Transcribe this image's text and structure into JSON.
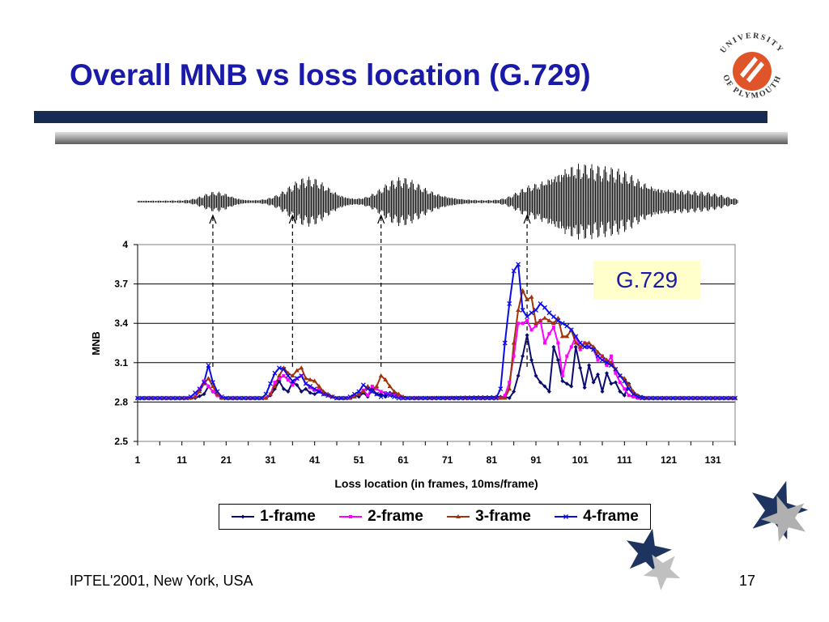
{
  "slide": {
    "title": "Overall MNB vs loss location (G.729)",
    "footer_left": "IPTEL'2001, New York, USA",
    "page_number": "17",
    "callout": "G.729"
  },
  "logo": {
    "text": "UNIVERSITY OF PLYMOUTH",
    "icon": "university-of-plymouth-logo"
  },
  "colors": {
    "title": "#1a1aa8",
    "bar_dark": "#162a52",
    "bar_grey": "#8c8c8c",
    "callout_bg": "#ffffcc",
    "logo_red": "#e0542a"
  },
  "decorations": [
    "waveform-icon",
    "star-icon",
    "arrow-up-icon"
  ],
  "chart_data": {
    "type": "line",
    "xlabel": "Loss location (in frames, 10ms/frame)",
    "ylabel": "MNB",
    "ylim": [
      2.5,
      4
    ],
    "yticks": [
      "2.5",
      "2.8",
      "3.1",
      "3.4",
      "3.7",
      "4"
    ],
    "xticks": [
      "1",
      "11",
      "21",
      "31",
      "41",
      "51",
      "61",
      "71",
      "81",
      "91",
      "101",
      "111",
      "121",
      "131"
    ],
    "xlim": [
      1,
      136
    ],
    "grid": "horizontal",
    "legend_position": "bottom",
    "arrow_frames": [
      18,
      36,
      56,
      89
    ],
    "series": [
      {
        "name": "1-frame",
        "color": "#0a0a70",
        "marker": "diamond",
        "points": [
          [
            1,
            2.83
          ],
          [
            14,
            2.83
          ],
          [
            16,
            2.86
          ],
          [
            17,
            2.92
          ],
          [
            18,
            2.88
          ],
          [
            19,
            2.85
          ],
          [
            20,
            2.83
          ],
          [
            30,
            2.83
          ],
          [
            31,
            2.85
          ],
          [
            32,
            2.9
          ],
          [
            33,
            2.96
          ],
          [
            34,
            2.9
          ],
          [
            35,
            2.88
          ],
          [
            36,
            2.95
          ],
          [
            37,
            2.93
          ],
          [
            38,
            2.88
          ],
          [
            39,
            2.9
          ],
          [
            40,
            2.87
          ],
          [
            41,
            2.86
          ],
          [
            42,
            2.88
          ],
          [
            43,
            2.86
          ],
          [
            44,
            2.85
          ],
          [
            46,
            2.83
          ],
          [
            49,
            2.83
          ],
          [
            50,
            2.85
          ],
          [
            51,
            2.84
          ],
          [
            52,
            2.87
          ],
          [
            53,
            2.84
          ],
          [
            54,
            2.9
          ],
          [
            55,
            2.86
          ],
          [
            56,
            2.86
          ],
          [
            57,
            2.84
          ],
          [
            58,
            2.87
          ],
          [
            59,
            2.86
          ],
          [
            60,
            2.85
          ],
          [
            61,
            2.83
          ],
          [
            84,
            2.84
          ],
          [
            85,
            2.83
          ],
          [
            86,
            2.88
          ],
          [
            87,
            3.0
          ],
          [
            88,
            3.15
          ],
          [
            89,
            3.31
          ],
          [
            90,
            3.12
          ],
          [
            91,
            3.0
          ],
          [
            92,
            2.95
          ],
          [
            93,
            2.92
          ],
          [
            94,
            2.88
          ],
          [
            95,
            3.22
          ],
          [
            96,
            3.12
          ],
          [
            97,
            2.96
          ],
          [
            98,
            2.94
          ],
          [
            99,
            2.92
          ],
          [
            100,
            3.22
          ],
          [
            101,
            3.06
          ],
          [
            102,
            2.91
          ],
          [
            103,
            3.08
          ],
          [
            104,
            2.95
          ],
          [
            105,
            3.01
          ],
          [
            106,
            2.88
          ],
          [
            107,
            3.02
          ],
          [
            108,
            2.94
          ],
          [
            109,
            2.95
          ],
          [
            110,
            2.88
          ],
          [
            111,
            2.85
          ],
          [
            112,
            2.94
          ],
          [
            113,
            2.87
          ],
          [
            114,
            2.85
          ],
          [
            115,
            2.84
          ],
          [
            116,
            2.83
          ],
          [
            136,
            2.83
          ]
        ]
      },
      {
        "name": "2-frame",
        "color": "#ff00ff",
        "marker": "square",
        "points": [
          [
            1,
            2.83
          ],
          [
            13,
            2.83
          ],
          [
            14,
            2.84
          ],
          [
            15,
            2.9
          ],
          [
            16,
            2.96
          ],
          [
            17,
            2.92
          ],
          [
            18,
            2.88
          ],
          [
            19,
            2.85
          ],
          [
            20,
            2.83
          ],
          [
            30,
            2.83
          ],
          [
            31,
            2.86
          ],
          [
            32,
            2.95
          ],
          [
            33,
            2.98
          ],
          [
            34,
            3.0
          ],
          [
            35,
            2.97
          ],
          [
            36,
            2.93
          ],
          [
            37,
            2.98
          ],
          [
            38,
            3.0
          ],
          [
            39,
            2.94
          ],
          [
            40,
            2.91
          ],
          [
            41,
            2.89
          ],
          [
            42,
            2.9
          ],
          [
            43,
            2.87
          ],
          [
            44,
            2.85
          ],
          [
            46,
            2.83
          ],
          [
            49,
            2.83
          ],
          [
            50,
            2.84
          ],
          [
            51,
            2.86
          ],
          [
            52,
            2.89
          ],
          [
            53,
            2.85
          ],
          [
            54,
            2.92
          ],
          [
            55,
            2.9
          ],
          [
            56,
            2.88
          ],
          [
            57,
            2.87
          ],
          [
            58,
            2.86
          ],
          [
            59,
            2.85
          ],
          [
            60,
            2.84
          ],
          [
            61,
            2.83
          ],
          [
            83,
            2.83
          ],
          [
            84,
            2.85
          ],
          [
            85,
            2.95
          ],
          [
            86,
            3.15
          ],
          [
            87,
            3.4
          ],
          [
            88,
            3.4
          ],
          [
            89,
            3.42
          ],
          [
            90,
            3.35
          ],
          [
            91,
            3.38
          ],
          [
            92,
            3.42
          ],
          [
            93,
            3.25
          ],
          [
            94,
            3.32
          ],
          [
            95,
            3.37
          ],
          [
            96,
            3.25
          ],
          [
            97,
            3.0
          ],
          [
            98,
            3.15
          ],
          [
            99,
            3.22
          ],
          [
            100,
            3.3
          ],
          [
            101,
            3.2
          ],
          [
            102,
            3.25
          ],
          [
            103,
            3.22
          ],
          [
            104,
            3.2
          ],
          [
            105,
            3.12
          ],
          [
            106,
            3.15
          ],
          [
            107,
            3.08
          ],
          [
            108,
            3.15
          ],
          [
            109,
            3.02
          ],
          [
            110,
            2.95
          ],
          [
            111,
            2.9
          ],
          [
            112,
            2.85
          ],
          [
            113,
            2.84
          ],
          [
            114,
            2.83
          ],
          [
            136,
            2.83
          ]
        ]
      },
      {
        "name": "3-frame",
        "color": "#a0340a",
        "marker": "triangle",
        "points": [
          [
            1,
            2.83
          ],
          [
            13,
            2.83
          ],
          [
            14,
            2.84
          ],
          [
            15,
            2.88
          ],
          [
            16,
            2.94
          ],
          [
            17,
            2.98
          ],
          [
            18,
            2.92
          ],
          [
            19,
            2.86
          ],
          [
            20,
            2.83
          ],
          [
            30,
            2.83
          ],
          [
            31,
            2.86
          ],
          [
            32,
            2.92
          ],
          [
            33,
            3.0
          ],
          [
            34,
            3.06
          ],
          [
            35,
            3.02
          ],
          [
            36,
            3.0
          ],
          [
            37,
            3.04
          ],
          [
            38,
            3.06
          ],
          [
            39,
            2.98
          ],
          [
            40,
            2.97
          ],
          [
            41,
            2.96
          ],
          [
            42,
            2.92
          ],
          [
            43,
            2.88
          ],
          [
            44,
            2.86
          ],
          [
            45,
            2.84
          ],
          [
            46,
            2.83
          ],
          [
            49,
            2.83
          ],
          [
            50,
            2.84
          ],
          [
            51,
            2.86
          ],
          [
            52,
            2.88
          ],
          [
            53,
            2.92
          ],
          [
            54,
            2.88
          ],
          [
            55,
            2.92
          ],
          [
            56,
            3.0
          ],
          [
            57,
            2.97
          ],
          [
            58,
            2.92
          ],
          [
            59,
            2.88
          ],
          [
            60,
            2.86
          ],
          [
            61,
            2.84
          ],
          [
            62,
            2.83
          ],
          [
            84,
            2.83
          ],
          [
            85,
            2.9
          ],
          [
            86,
            3.25
          ],
          [
            87,
            3.5
          ],
          [
            88,
            3.65
          ],
          [
            89,
            3.58
          ],
          [
            90,
            3.6
          ],
          [
            91,
            3.4
          ],
          [
            92,
            3.42
          ],
          [
            93,
            3.44
          ],
          [
            94,
            3.42
          ],
          [
            95,
            3.4
          ],
          [
            96,
            3.44
          ],
          [
            97,
            3.3
          ],
          [
            98,
            3.3
          ],
          [
            99,
            3.35
          ],
          [
            100,
            3.25
          ],
          [
            101,
            3.22
          ],
          [
            102,
            3.25
          ],
          [
            103,
            3.25
          ],
          [
            104,
            3.22
          ],
          [
            105,
            3.18
          ],
          [
            106,
            3.15
          ],
          [
            107,
            3.12
          ],
          [
            108,
            3.1
          ],
          [
            109,
            3.05
          ],
          [
            110,
            3.0
          ],
          [
            111,
            2.98
          ],
          [
            112,
            2.93
          ],
          [
            113,
            2.88
          ],
          [
            114,
            2.85
          ],
          [
            115,
            2.83
          ],
          [
            136,
            2.83
          ]
        ]
      },
      {
        "name": "4-frame",
        "color": "#0b0be8",
        "marker": "x",
        "points": [
          [
            1,
            2.83
          ],
          [
            12,
            2.83
          ],
          [
            13,
            2.84
          ],
          [
            14,
            2.87
          ],
          [
            15,
            2.9
          ],
          [
            16,
            2.95
          ],
          [
            17,
            3.08
          ],
          [
            18,
            2.95
          ],
          [
            19,
            2.88
          ],
          [
            20,
            2.84
          ],
          [
            21,
            2.83
          ],
          [
            29,
            2.83
          ],
          [
            30,
            2.86
          ],
          [
            31,
            2.94
          ],
          [
            32,
            3.02
          ],
          [
            33,
            3.06
          ],
          [
            34,
            3.05
          ],
          [
            35,
            3.0
          ],
          [
            36,
            2.96
          ],
          [
            37,
            2.98
          ],
          [
            38,
            3.0
          ],
          [
            39,
            2.94
          ],
          [
            40,
            2.92
          ],
          [
            41,
            2.9
          ],
          [
            42,
            2.88
          ],
          [
            43,
            2.86
          ],
          [
            44,
            2.85
          ],
          [
            45,
            2.84
          ],
          [
            46,
            2.83
          ],
          [
            48,
            2.83
          ],
          [
            49,
            2.84
          ],
          [
            50,
            2.86
          ],
          [
            51,
            2.88
          ],
          [
            52,
            2.93
          ],
          [
            53,
            2.9
          ],
          [
            54,
            2.88
          ],
          [
            55,
            2.86
          ],
          [
            56,
            2.84
          ],
          [
            57,
            2.86
          ],
          [
            58,
            2.85
          ],
          [
            59,
            2.84
          ],
          [
            60,
            2.83
          ],
          [
            82,
            2.83
          ],
          [
            83,
            2.9
          ],
          [
            84,
            3.25
          ],
          [
            85,
            3.55
          ],
          [
            86,
            3.8
          ],
          [
            87,
            3.85
          ],
          [
            88,
            3.5
          ],
          [
            89,
            3.45
          ],
          [
            90,
            3.48
          ],
          [
            91,
            3.5
          ],
          [
            92,
            3.55
          ],
          [
            93,
            3.52
          ],
          [
            94,
            3.48
          ],
          [
            95,
            3.45
          ],
          [
            96,
            3.42
          ],
          [
            97,
            3.4
          ],
          [
            98,
            3.38
          ],
          [
            99,
            3.35
          ],
          [
            100,
            3.3
          ],
          [
            101,
            3.25
          ],
          [
            102,
            3.22
          ],
          [
            103,
            3.22
          ],
          [
            104,
            3.2
          ],
          [
            105,
            3.15
          ],
          [
            106,
            3.12
          ],
          [
            107,
            3.1
          ],
          [
            108,
            3.08
          ],
          [
            109,
            3.05
          ],
          [
            110,
            3.0
          ],
          [
            111,
            2.96
          ],
          [
            112,
            2.9
          ],
          [
            113,
            2.86
          ],
          [
            114,
            2.84
          ],
          [
            115,
            2.83
          ],
          [
            136,
            2.83
          ]
        ]
      }
    ]
  }
}
